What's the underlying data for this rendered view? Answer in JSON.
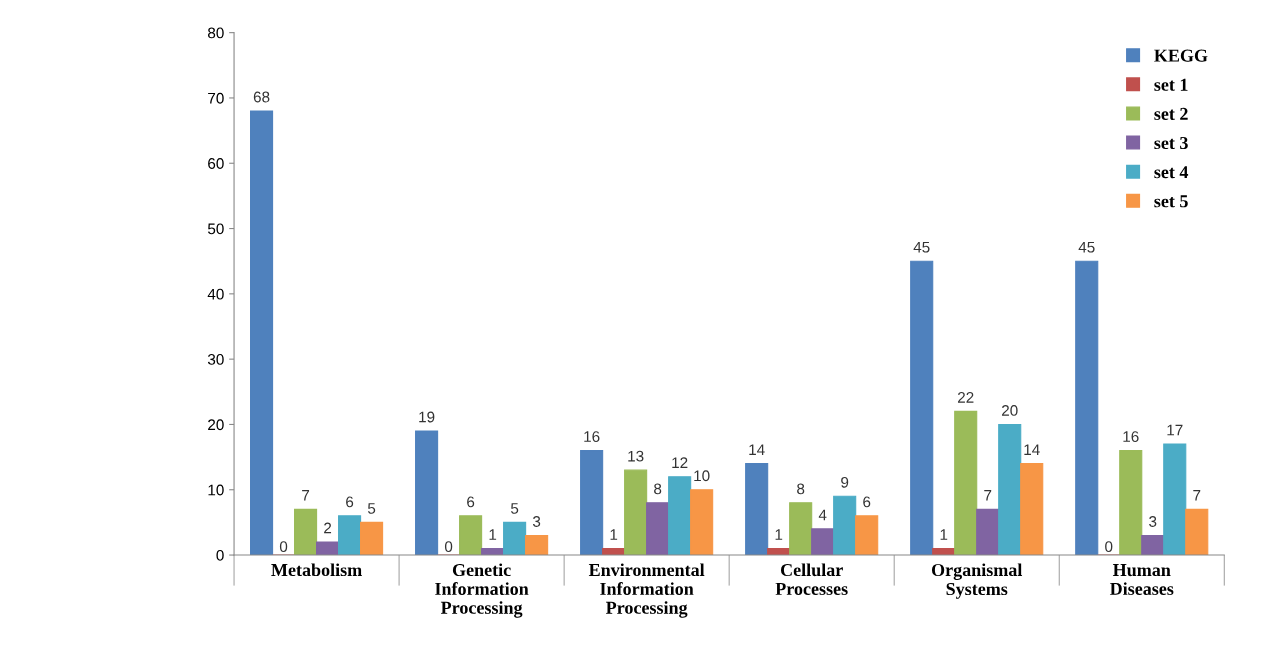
{
  "chart_data": {
    "type": "bar",
    "categories": [
      "Metabolism",
      "Genetic\nInformation\nProcessing",
      "Environmental\nInformation\nProcessing",
      "Cellular\nProcesses",
      "Organismal\nSystems",
      "Human\nDiseases"
    ],
    "series": [
      {
        "name": "KEGG",
        "color": "#4f81bd",
        "values": [
          68,
          19,
          16,
          14,
          45,
          45
        ]
      },
      {
        "name": "set 1",
        "color": "#c0504d",
        "values": [
          0,
          0,
          1,
          1,
          1,
          0
        ]
      },
      {
        "name": "set 2",
        "color": "#9bbb59",
        "values": [
          7,
          6,
          13,
          8,
          22,
          16
        ]
      },
      {
        "name": "set 3",
        "color": "#8064a2",
        "values": [
          2,
          1,
          8,
          4,
          7,
          3
        ]
      },
      {
        "name": "set 4",
        "color": "#4bacc6",
        "values": [
          6,
          5,
          12,
          9,
          20,
          17
        ]
      },
      {
        "name": "set 5",
        "color": "#f79646",
        "values": [
          5,
          3,
          10,
          6,
          14,
          7
        ]
      }
    ],
    "ylim": [
      0,
      80
    ],
    "yticks": [
      0,
      10,
      20,
      30,
      40,
      50,
      60,
      70,
      80
    ],
    "grid": false,
    "legend": "top right",
    "data_labels": true
  }
}
